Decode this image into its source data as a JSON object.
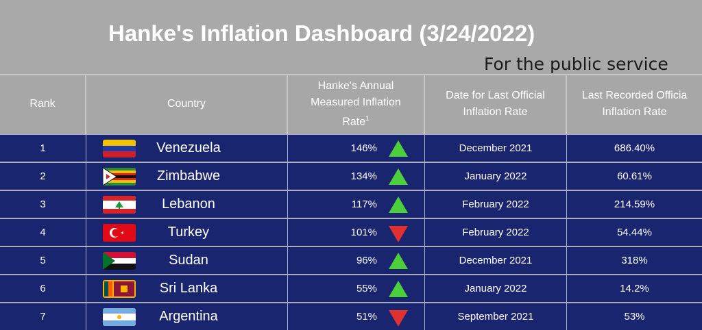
{
  "title": "Hanke's Inflation Dashboard (3/24/2022)",
  "subtitle": "For the public service",
  "headers": {
    "rank": "Rank",
    "country": "Country",
    "hanke_l1": "Hanke's Annual",
    "hanke_l2": "Measured Inflation",
    "hanke_l3": "Rate",
    "hanke_sup": "1",
    "date_l1": "Date for Last Official",
    "date_l2": "Inflation Rate",
    "official_l1": "Last Recorded Officia",
    "official_l2": "Inflation Rate"
  },
  "rows": [
    {
      "rank": "1",
      "country": "Venezuela",
      "flag": "venezuela-flag-icon",
      "hanke": "146%",
      "trend": "up",
      "date": "December 2021",
      "official": "686.40%"
    },
    {
      "rank": "2",
      "country": "Zimbabwe",
      "flag": "zimbabwe-flag-icon",
      "hanke": "134%",
      "trend": "up",
      "date": "January 2022",
      "official": "60.61%"
    },
    {
      "rank": "3",
      "country": "Lebanon",
      "flag": "lebanon-flag-icon",
      "hanke": "117%",
      "trend": "up",
      "date": "February 2022",
      "official": "214.59%"
    },
    {
      "rank": "4",
      "country": "Turkey",
      "flag": "turkey-flag-icon",
      "hanke": "101%",
      "trend": "down",
      "date": "February 2022",
      "official": "54.44%"
    },
    {
      "rank": "5",
      "country": "Sudan",
      "flag": "sudan-flag-icon",
      "hanke": "96%",
      "trend": "up",
      "date": "December 2021",
      "official": "318%"
    },
    {
      "rank": "6",
      "country": "Sri Lanka",
      "flag": "sri-lanka-flag-icon",
      "hanke": "55%",
      "trend": "up",
      "date": "January 2022",
      "official": "14.2%"
    },
    {
      "rank": "7",
      "country": "Argentina",
      "flag": "argentina-flag-icon",
      "hanke": "51%",
      "trend": "down",
      "date": "September 2021",
      "official": "53%"
    }
  ],
  "colors": {
    "up": "#4ccf3a",
    "down": "#e03030",
    "row_bg": "#1a2570",
    "header_bg": "#a7a7a7"
  }
}
